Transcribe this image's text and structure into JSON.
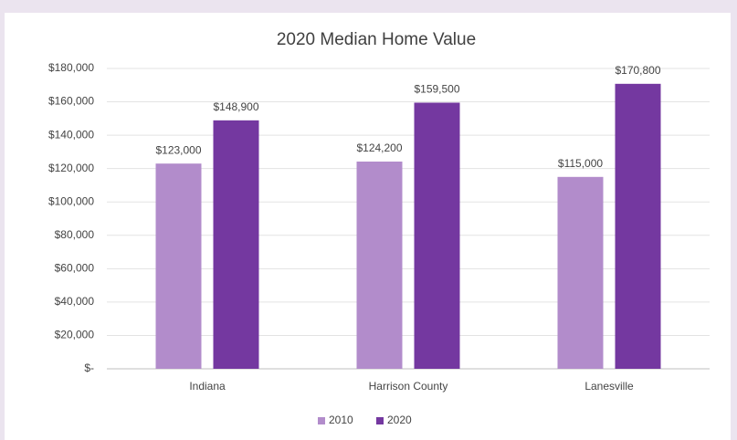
{
  "chart_data": {
    "type": "bar",
    "title": "2020 Median Home Value",
    "categories": [
      "Indiana",
      "Harrison County",
      "Lanesville"
    ],
    "series": [
      {
        "name": "2010",
        "color": "#b28ccb",
        "values": [
          123000,
          124200,
          115000
        ],
        "value_labels": [
          "$123,000",
          "$124,200",
          "$115,000"
        ]
      },
      {
        "name": "2020",
        "color": "#7438a0",
        "values": [
          148900,
          159500,
          170800
        ],
        "value_labels": [
          "$148,900",
          "$159,500",
          "$170,800"
        ]
      }
    ],
    "ylim": [
      0,
      180000
    ],
    "yticks": [
      {
        "value": 0,
        "label": "$-"
      },
      {
        "value": 20000,
        "label": "$20,000"
      },
      {
        "value": 40000,
        "label": "$40,000"
      },
      {
        "value": 60000,
        "label": "$60,000"
      },
      {
        "value": 80000,
        "label": "$80,000"
      },
      {
        "value": 100000,
        "label": "$100,000"
      },
      {
        "value": 120000,
        "label": "$120,000"
      },
      {
        "value": 140000,
        "label": "$140,000"
      },
      {
        "value": 160000,
        "label": "$160,000"
      },
      {
        "value": 180000,
        "label": "$180,000"
      }
    ],
    "grid": true,
    "legend": "bottom"
  }
}
